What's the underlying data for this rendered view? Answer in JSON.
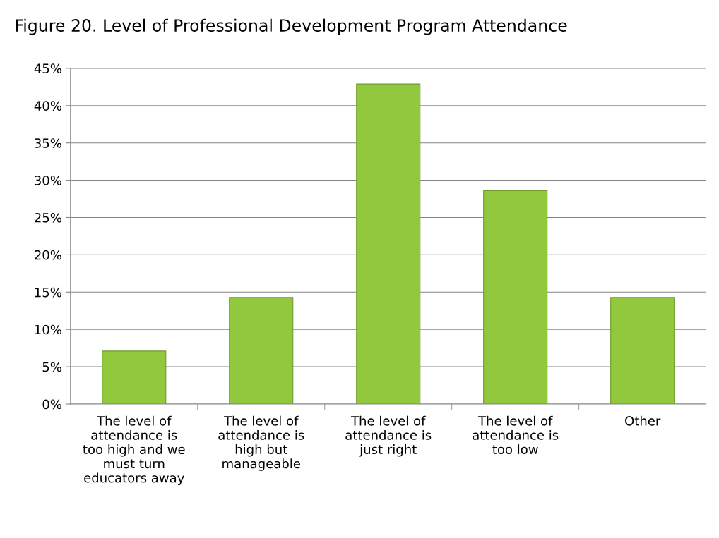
{
  "chart_data": {
    "type": "bar",
    "title": "Figure 20. Level of Professional Development Program Attendance",
    "categories": [
      "The level of\nattendance is\ntoo high and we\nmust turn\neducators away",
      "The level of\nattendance is\nhigh but\nmanageable",
      "The level of\nattendance is\njust right",
      "The level of\nattendance is\ntoo low",
      "Other"
    ],
    "values": [
      7.1,
      14.3,
      42.9,
      28.6,
      14.3
    ],
    "color": "#92c83e",
    "ylim": [
      0,
      45
    ],
    "yticks": [
      {
        "value": 0,
        "label": "0%"
      },
      {
        "value": 5,
        "label": "5%"
      },
      {
        "value": 10,
        "label": "10%"
      },
      {
        "value": 15,
        "label": "15%"
      },
      {
        "value": 20,
        "label": "20%"
      },
      {
        "value": 25,
        "label": "25%"
      },
      {
        "value": 30,
        "label": "30%"
      },
      {
        "value": 35,
        "label": "35%"
      },
      {
        "value": 40,
        "label": "40%"
      },
      {
        "value": 45,
        "label": "45%"
      }
    ],
    "grid": "y",
    "legend": false
  }
}
